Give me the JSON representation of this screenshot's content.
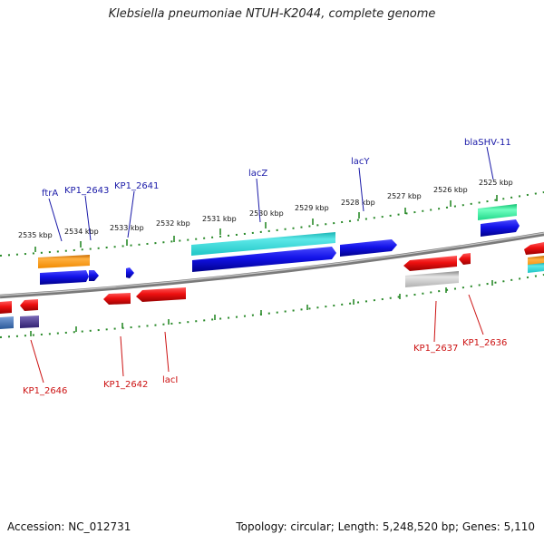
{
  "title": "Klebsiella pneumoniae NTUH-K2044, complete genome",
  "footer": {
    "accession": "Accession: NC_012731",
    "summary": "Topology: circular; Length: 5,248,520 bp; Genes: 5,110"
  },
  "ruler": {
    "ticks": [
      "2535 kbp",
      "2534 kbp",
      "2533 kbp",
      "2532 kbp",
      "2531 kbp",
      "2530 kbp",
      "2529 kbp",
      "2528 kbp",
      "2527 kbp",
      "2526 kbp",
      "2525 kbp"
    ]
  },
  "colors": {
    "forward_label": "#1a1aa8",
    "reverse_label": "#cc1111",
    "tick": "#2a8a2a",
    "backbone": "#8a8a8a"
  },
  "genes_forward": [
    {
      "label": "ftrA"
    },
    {
      "label": "KP1_2643"
    },
    {
      "label": "KP1_2641"
    },
    {
      "label": "lacZ"
    },
    {
      "label": "lacY"
    },
    {
      "label": "blaSHV-11"
    }
  ],
  "genes_reverse": [
    {
      "label": "KP1_2646"
    },
    {
      "label": "KP1_2642"
    },
    {
      "label": "lacI"
    },
    {
      "label": "KP1_2637"
    },
    {
      "label": "KP1_2636"
    }
  ]
}
